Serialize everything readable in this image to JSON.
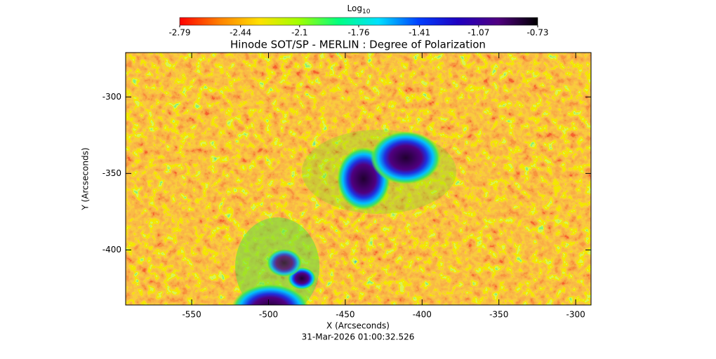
{
  "chart_data": {
    "type": "heatmap",
    "title": "Hinode SOT/SP - MERLIN : Degree of Polarization",
    "x_label": "X (Arcseconds)",
    "y_label": "Y (Arcseconds)",
    "footer": "31-Mar-2026 01:00:32.526",
    "xlim": [
      -593,
      -290
    ],
    "xticks": [
      -550,
      -500,
      -450,
      -400,
      -350,
      -300
    ],
    "ylim": [
      -436,
      -271
    ],
    "yticks": [
      -400,
      -350,
      -300
    ],
    "colorbar": {
      "label": "Log",
      "label_subscript": "10",
      "lim": [
        -2.79,
        -0.73
      ],
      "ticks": [
        -2.79,
        -2.44,
        -2.1,
        -1.76,
        -1.41,
        -1.07,
        -0.73
      ],
      "colors": [
        "#ff0000",
        "#ff8000",
        "#ffe000",
        "#a0ff00",
        "#00ff80",
        "#00e0ff",
        "#0040ff",
        "#2000c0",
        "#500080",
        "#000000"
      ]
    }
  }
}
